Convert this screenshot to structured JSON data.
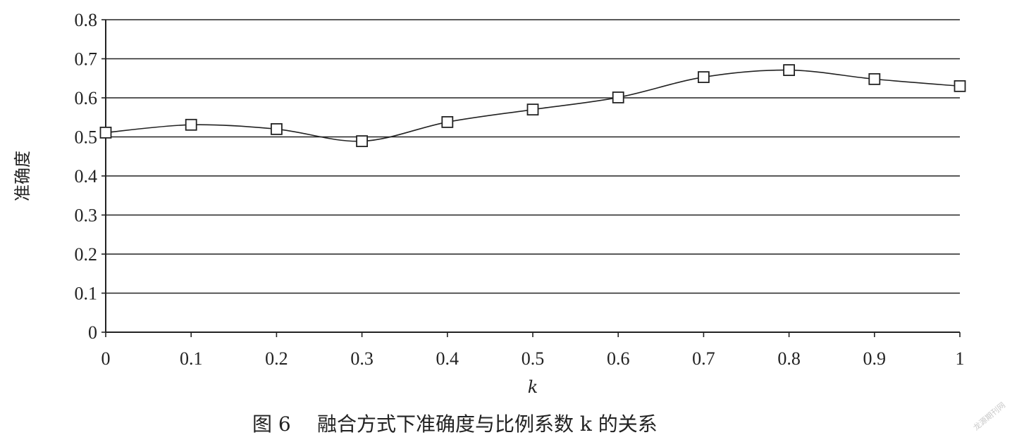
{
  "chart_data": {
    "type": "line",
    "title": "",
    "xlabel": "k",
    "ylabel": "准确度",
    "x": [
      0,
      0.1,
      0.2,
      0.3,
      0.4,
      0.5,
      0.6,
      0.7,
      0.8,
      0.9,
      1
    ],
    "x_tick_labels": [
      "0",
      "0.1",
      "0.2",
      "0.3",
      "0.4",
      "0.5",
      "0.6",
      "0.7",
      "0.8",
      "0.9",
      "1"
    ],
    "y_tick_labels": [
      "0",
      "0.1",
      "0.2",
      "0.3",
      "0.4",
      "0.5",
      "0.6",
      "0.7",
      "0.8"
    ],
    "y_ticks": [
      0,
      0.1,
      0.2,
      0.3,
      0.4,
      0.5,
      0.6,
      0.7,
      0.8
    ],
    "series": [
      {
        "values": [
          0.511,
          0.531,
          0.52,
          0.489,
          0.538,
          0.57,
          0.601,
          0.653,
          0.671,
          0.648,
          0.63
        ]
      }
    ],
    "xlim": [
      0,
      1
    ],
    "ylim": [
      0,
      0.8
    ],
    "grid": "horizontal",
    "marker": "open-square",
    "line_color": "#222222"
  },
  "caption": {
    "label": "图 6",
    "text": "融合方式下准确度与比例系数 k 的关系"
  },
  "watermark": "龙源期刊网"
}
